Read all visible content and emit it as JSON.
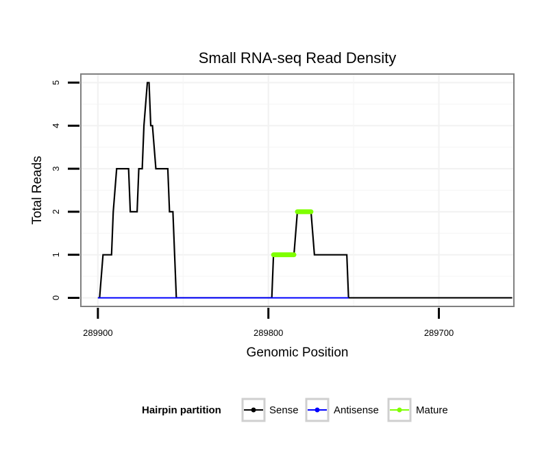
{
  "chart_data": {
    "type": "line",
    "title": "Small RNA-seq Read Density",
    "xlabel": "Genomic Position",
    "ylabel": "Total Reads",
    "xlim": [
      289910,
      289656
    ],
    "ylim": [
      -0.2,
      5.2
    ],
    "x_reversed": true,
    "grid": true,
    "x_ticks": [
      289900,
      289800,
      289700
    ],
    "x_tick_labels": [
      "289900",
      "289800",
      "289700"
    ],
    "y_ticks": [
      0,
      1,
      2,
      3,
      4,
      5
    ],
    "y_tick_labels": [
      "0",
      "1",
      "2",
      "3",
      "4",
      "5"
    ],
    "legend": {
      "title": "Hairpin partition",
      "position": "bottom",
      "entries": [
        "Sense",
        "Antisense",
        "Mature"
      ]
    },
    "series": [
      {
        "name": "Sense",
        "color": "#000000",
        "x": [
          289900,
          289899,
          289897,
          289892,
          289891,
          289889,
          289882,
          289881,
          289877,
          289876,
          289874,
          289873,
          289871,
          289870,
          289869,
          289868,
          289866,
          289859,
          289858,
          289856,
          289855,
          289854,
          289798,
          289797,
          289785,
          289783,
          289775,
          289773,
          289754,
          289753,
          289657
        ],
        "y": [
          0,
          0,
          1,
          1,
          2,
          3,
          3,
          2,
          2,
          3,
          3,
          4,
          5,
          5,
          4,
          4,
          3,
          3,
          2,
          2,
          1,
          0,
          0,
          1,
          1,
          2,
          2,
          1,
          1,
          0,
          0
        ]
      },
      {
        "name": "Antisense",
        "color": "#0000ff",
        "x": [
          289900,
          289753
        ],
        "y": [
          0,
          0
        ]
      },
      {
        "name": "Mature",
        "color": "#7fff00",
        "segments": [
          {
            "x": [
              289797,
              289785
            ],
            "y": [
              1,
              1
            ]
          },
          {
            "x": [
              289783,
              289775
            ],
            "y": [
              2,
              2
            ]
          }
        ]
      }
    ]
  }
}
